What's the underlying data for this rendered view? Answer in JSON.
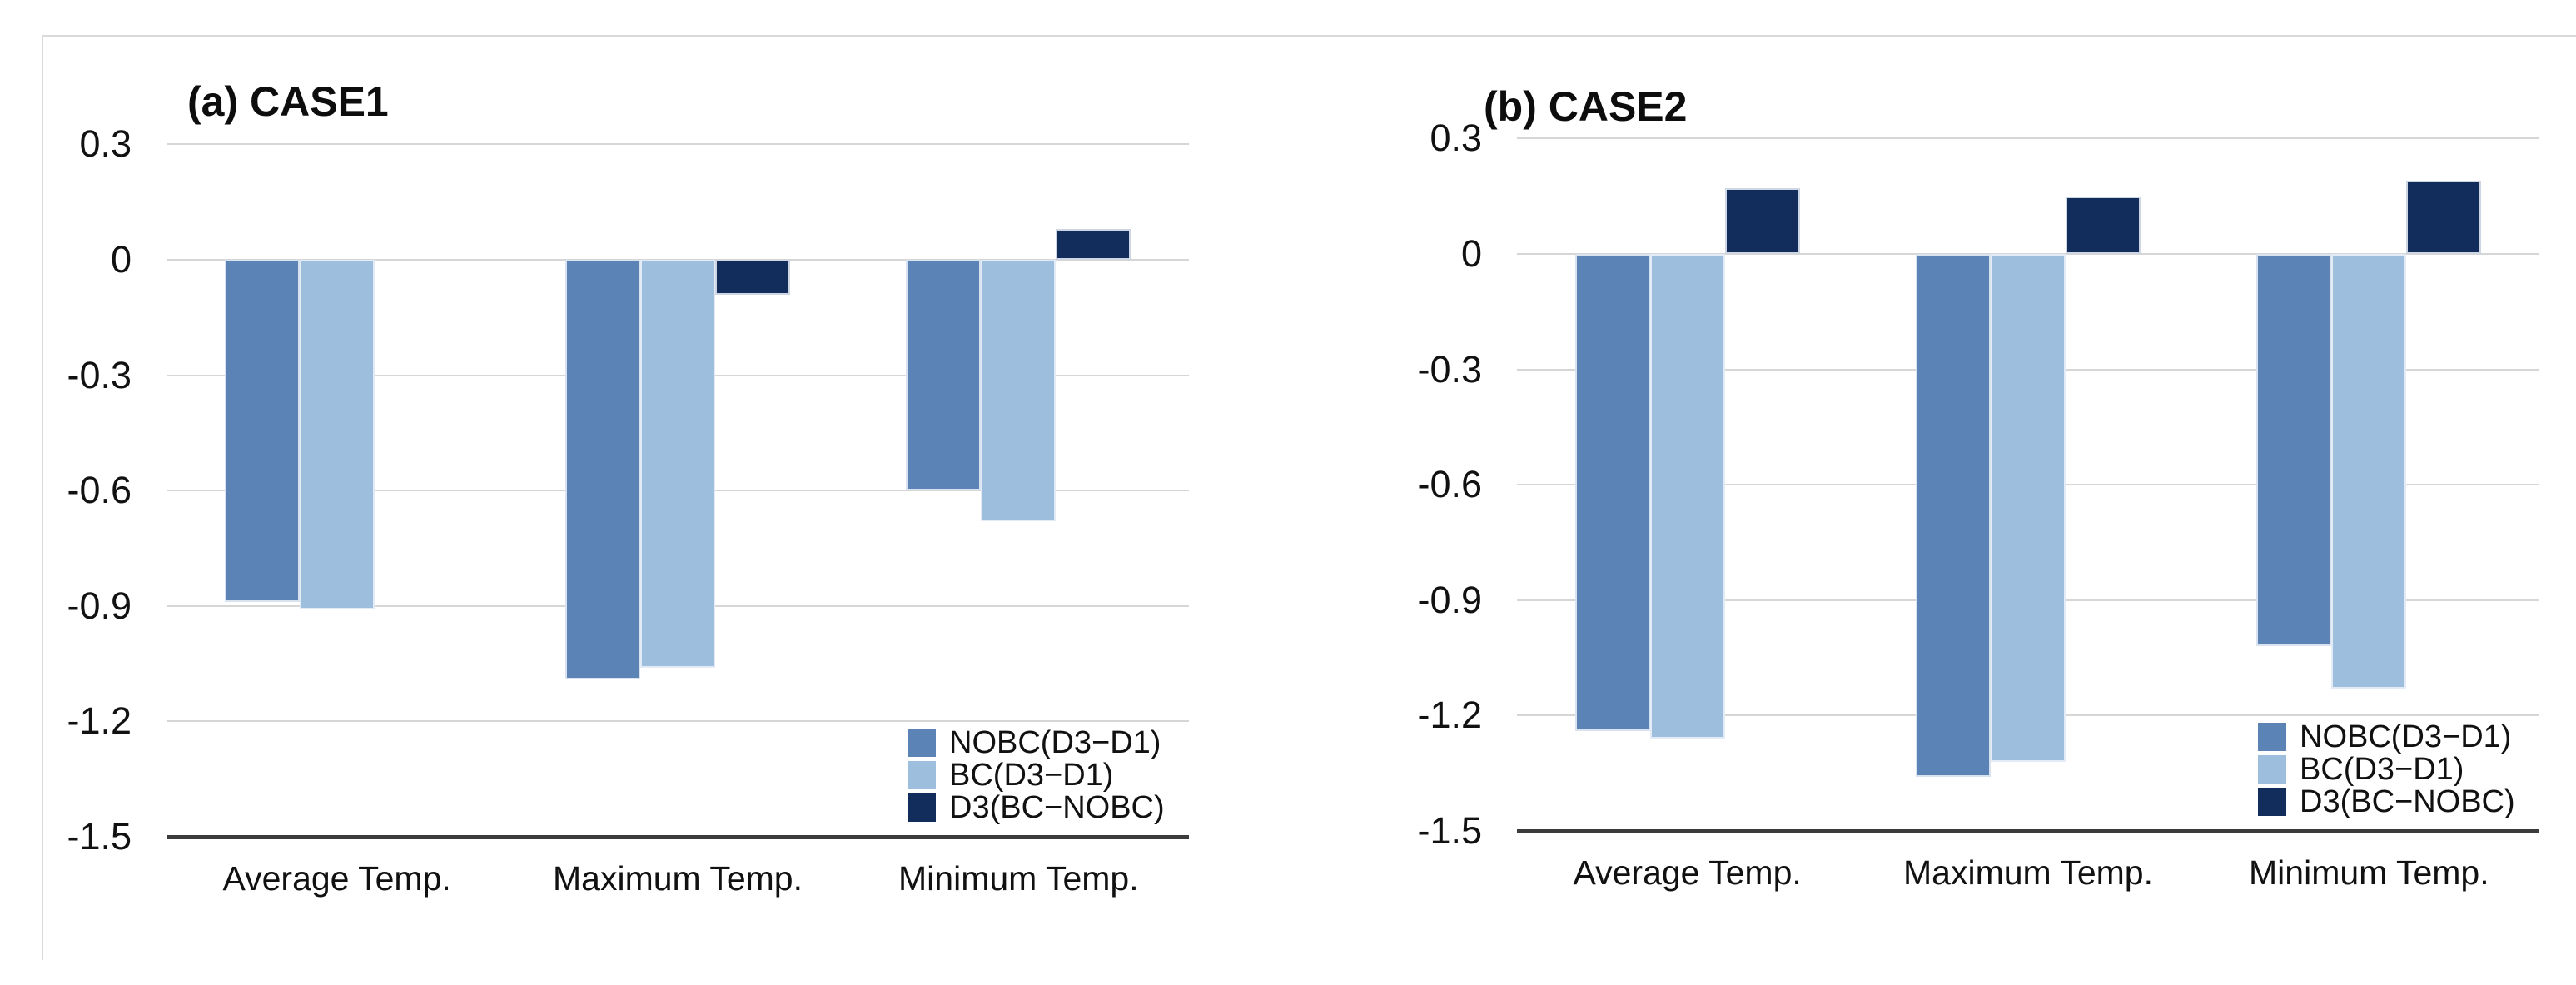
{
  "figure": {
    "background": "#ffffff",
    "frame_color": "#d9d9d9",
    "gridline_color": "#d6d6d6",
    "axis_line_color": "#3b3b3b",
    "text_color": "#111111"
  },
  "series_colors": {
    "nobc": "#5b83b5",
    "bc": "#9dbedd",
    "d3": "#122c5c"
  },
  "chart_data": [
    {
      "type": "bar",
      "title": "(a) CASE1",
      "categories": [
        "Average Temp.",
        "Maximum Temp.",
        "Minimum Temp."
      ],
      "series": [
        {
          "name": "NOBC(D3−D1)",
          "key": "nobc",
          "color": "#5b83b5",
          "values": [
            -0.89,
            -1.09,
            -0.6
          ]
        },
        {
          "name": "BC(D3−D1)",
          "key": "bc",
          "color": "#9dbedd",
          "values": [
            -0.91,
            -1.06,
            -0.68
          ]
        },
        {
          "name": "D3(BC−NOBC)",
          "key": "d3",
          "color": "#122c5c",
          "values": [
            0.0,
            -0.09,
            0.08
          ]
        }
      ],
      "y_ticks": [
        0.3,
        0,
        -0.3,
        -0.6,
        -0.9,
        -1.2,
        -1.5
      ],
      "y_tick_labels": [
        "0.3",
        "0",
        "-0.3",
        "-0.6",
        "-0.9",
        "-1.2",
        "-1.5"
      ],
      "ylim": [
        -1.5,
        0.3
      ],
      "grid": true,
      "legend_position": "lower-right",
      "legend_entries": [
        "NOBC(D3−D1)",
        "BC(D3−D1)",
        "D3(BC−NOBC)"
      ]
    },
    {
      "type": "bar",
      "title": "(b) CASE2",
      "categories": [
        "Average Temp.",
        "Maximum Temp.",
        "Minimum Temp."
      ],
      "series": [
        {
          "name": "NOBC(D3−D1)",
          "key": "nobc",
          "color": "#5b83b5",
          "values": [
            -1.24,
            -1.36,
            -1.02
          ]
        },
        {
          "name": "BC(D3−D1)",
          "key": "bc",
          "color": "#9dbedd",
          "values": [
            -1.26,
            -1.32,
            -1.13
          ]
        },
        {
          "name": "D3(BC−NOBC)",
          "key": "d3",
          "color": "#122c5c",
          "values": [
            0.17,
            0.15,
            0.19
          ]
        }
      ],
      "y_ticks": [
        0.3,
        0,
        -0.3,
        -0.6,
        -0.9,
        -1.2,
        -1.5
      ],
      "y_tick_labels": [
        "0.3",
        "0",
        "-0.3",
        "-0.6",
        "-0.9",
        "-1.2",
        "-1.5"
      ],
      "ylim": [
        -1.5,
        0.3
      ],
      "grid": true,
      "legend_position": "lower-right",
      "legend_entries": [
        "NOBC(D3−D1)",
        "BC(D3−D1)",
        "D3(BC−NOBC)"
      ]
    }
  ]
}
